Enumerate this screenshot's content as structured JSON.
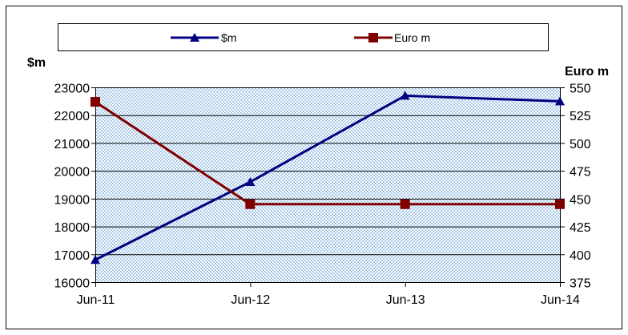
{
  "chart_data": {
    "type": "line",
    "categories": [
      "Jun-11",
      "Jun-12",
      "Jun-13",
      "Jun-14"
    ],
    "left_axis": {
      "title": "$m",
      "ticks": [
        "23000",
        "22000",
        "21000",
        "20000",
        "19000",
        "18000",
        "17000",
        "16000"
      ],
      "ylim": [
        16000,
        23000
      ]
    },
    "right_axis": {
      "title": "Euro m",
      "ticks": [
        "550",
        "525",
        "500",
        "475",
        "450",
        "425",
        "400",
        "375"
      ],
      "ylim": [
        375,
        550
      ]
    },
    "series": [
      {
        "name": "$m",
        "axis": "left",
        "marker": "triangle",
        "color": "#000080",
        "values": [
          16800,
          19600,
          22700,
          22500
        ]
      },
      {
        "name": "Euro m",
        "axis": "right",
        "marker": "square",
        "color": "#800000",
        "values": [
          537,
          445,
          445,
          445
        ]
      }
    ],
    "plot_background": "#c0d8f0",
    "grid": true,
    "legend_position": "top"
  }
}
